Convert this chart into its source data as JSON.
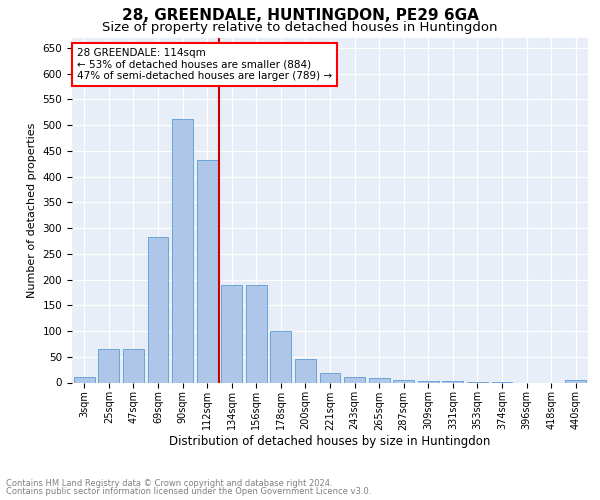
{
  "title1": "28, GREENDALE, HUNTINGDON, PE29 6GA",
  "title2": "Size of property relative to detached houses in Huntingdon",
  "xlabel": "Distribution of detached houses by size in Huntingdon",
  "ylabel": "Number of detached properties",
  "footnote1": "Contains HM Land Registry data © Crown copyright and database right 2024.",
  "footnote2": "Contains public sector information licensed under the Open Government Licence v3.0.",
  "annotation_line1": "28 GREENDALE: 114sqm",
  "annotation_line2": "← 53% of detached houses are smaller (884)",
  "annotation_line3": "47% of semi-detached houses are larger (789) →",
  "bar_color": "#aec6e8",
  "bar_edge_color": "#5b9bd5",
  "vline_color": "#cc0000",
  "categories": [
    "3sqm",
    "25sqm",
    "47sqm",
    "69sqm",
    "90sqm",
    "112sqm",
    "134sqm",
    "156sqm",
    "178sqm",
    "200sqm",
    "221sqm",
    "243sqm",
    "265sqm",
    "287sqm",
    "309sqm",
    "331sqm",
    "353sqm",
    "374sqm",
    "396sqm",
    "418sqm",
    "440sqm"
  ],
  "values": [
    10,
    65,
    65,
    282,
    512,
    432,
    190,
    190,
    100,
    46,
    18,
    10,
    8,
    5,
    2,
    2,
    1,
    1,
    0,
    0,
    5
  ],
  "ylim": [
    0,
    670
  ],
  "yticks": [
    0,
    50,
    100,
    150,
    200,
    250,
    300,
    350,
    400,
    450,
    500,
    550,
    600,
    650
  ],
  "background_color": "#e8eef7",
  "title1_fontsize": 11,
  "title2_fontsize": 9.5,
  "footnote_fontsize": 6.0,
  "footnote_color": "#808080"
}
